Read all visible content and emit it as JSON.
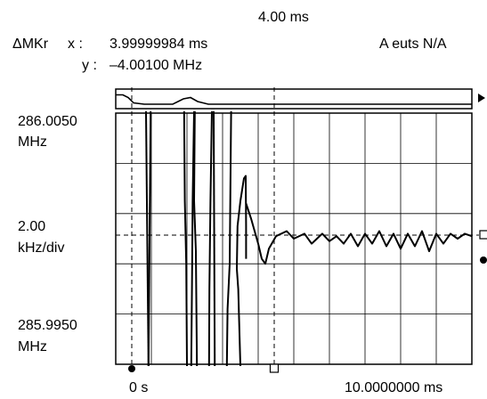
{
  "header": {
    "center_time": "4.00 ms",
    "marker_label": "ΔMKr",
    "x_prefix": "x :",
    "x_value": "3.99999984 ms",
    "y_prefix": "y :",
    "y_value": "–4.00100 MHz",
    "status": "A euts N/A"
  },
  "y_axis": {
    "top_value": "286.0050",
    "top_unit": "MHz",
    "scale_value": "2.00",
    "scale_unit": "kHz/div",
    "bottom_value": "285.9950",
    "bottom_unit": "MHz"
  },
  "x_axis": {
    "start_label": "0 s",
    "end_label": "10.0000000 ms"
  },
  "chart_data": {
    "type": "line",
    "xlim": [
      0,
      10
    ],
    "ylim": [
      285.995,
      286.005
    ],
    "x_unit": "ms",
    "y_unit": "MHz",
    "grid": true,
    "divisions_x": 10,
    "divisions_y": 5,
    "center_frequency": 286.0,
    "scale_per_div_khz": 2.0,
    "marker_1_x": 0.45,
    "marker_2_x": 4.45,
    "delta_x_ms": 3.99999984,
    "delta_y_mhz": -4.001,
    "overview_trace": [
      [
        0,
        0.3
      ],
      [
        0.2,
        0.3
      ],
      [
        0.35,
        0.5
      ],
      [
        0.5,
        0.9
      ],
      [
        0.8,
        1.0
      ],
      [
        1.2,
        1.0
      ],
      [
        1.6,
        1.0
      ],
      [
        1.9,
        0.6
      ],
      [
        2.1,
        0.5
      ],
      [
        2.3,
        0.8
      ],
      [
        2.6,
        1.0
      ],
      [
        4.0,
        1.0
      ],
      [
        10,
        1.0
      ]
    ],
    "segments": [
      [
        [
          0.85,
          286.0055
        ],
        [
          0.92,
          285.9948
        ]
      ],
      [
        [
          0.92,
          285.9948
        ],
        [
          0.98,
          286.0055
        ]
      ],
      [
        [
          1.92,
          286.0055
        ],
        [
          1.94,
          286.0015
        ],
        [
          1.98,
          285.999
        ],
        [
          2.0,
          285.9948
        ]
      ],
      [
        [
          2.12,
          285.9948
        ],
        [
          2.14,
          285.998
        ],
        [
          2.16,
          286.0015
        ],
        [
          2.2,
          286.0055
        ]
      ],
      [
        [
          2.22,
          286.0055
        ],
        [
          2.2,
          286.0015
        ],
        [
          2.25,
          285.9995
        ],
        [
          2.28,
          285.9948
        ]
      ],
      [
        [
          2.62,
          285.9948
        ],
        [
          2.63,
          285.998
        ],
        [
          2.66,
          286.0015
        ],
        [
          2.7,
          286.0055
        ]
      ],
      [
        [
          2.75,
          286.0055
        ],
        [
          2.78,
          285.9948
        ]
      ],
      [
        [
          3.12,
          285.9948
        ],
        [
          3.14,
          285.9972
        ],
        [
          3.2,
          285.999
        ],
        [
          3.24,
          286.0055
        ]
      ],
      [
        [
          3.5,
          285.9948
        ],
        [
          3.44,
          285.998
        ],
        [
          3.4,
          285.9988
        ],
        [
          3.42,
          286.0005
        ],
        [
          3.5,
          286.0015
        ],
        [
          3.6,
          286.0024
        ],
        [
          3.65,
          286.0025
        ],
        [
          3.66,
          286.0005
        ],
        [
          3.66,
          285.9992
        ]
      ],
      [
        [
          3.66,
          286.0014
        ],
        [
          3.8,
          286.0008
        ],
        [
          3.9,
          286.0003
        ],
        [
          4.0,
          285.9998
        ],
        [
          4.1,
          285.9992
        ],
        [
          4.2,
          285.999
        ],
        [
          4.3,
          285.9996
        ],
        [
          4.5,
          286.0001
        ],
        [
          4.8,
          286.0003
        ],
        [
          5.0,
          286.0
        ],
        [
          5.3,
          286.0002
        ],
        [
          5.5,
          285.9998
        ],
        [
          5.8,
          286.0002
        ],
        [
          6.0,
          285.9999
        ],
        [
          6.2,
          286.0001
        ],
        [
          6.4,
          285.9998
        ],
        [
          6.6,
          286.0002
        ],
        [
          6.8,
          285.9997
        ],
        [
          7.0,
          286.0002
        ],
        [
          7.2,
          285.9998
        ],
        [
          7.4,
          286.0003
        ],
        [
          7.6,
          285.9997
        ],
        [
          7.8,
          286.0002
        ],
        [
          8.0,
          285.9996
        ],
        [
          8.2,
          286.0002
        ],
        [
          8.4,
          285.9997
        ],
        [
          8.6,
          286.0003
        ],
        [
          8.8,
          285.9995
        ],
        [
          9.0,
          286.0002
        ],
        [
          9.2,
          285.9998
        ],
        [
          9.4,
          286.0002
        ],
        [
          9.6,
          286.0
        ],
        [
          9.8,
          286.0002
        ],
        [
          10.0,
          286.0001
        ]
      ]
    ]
  }
}
